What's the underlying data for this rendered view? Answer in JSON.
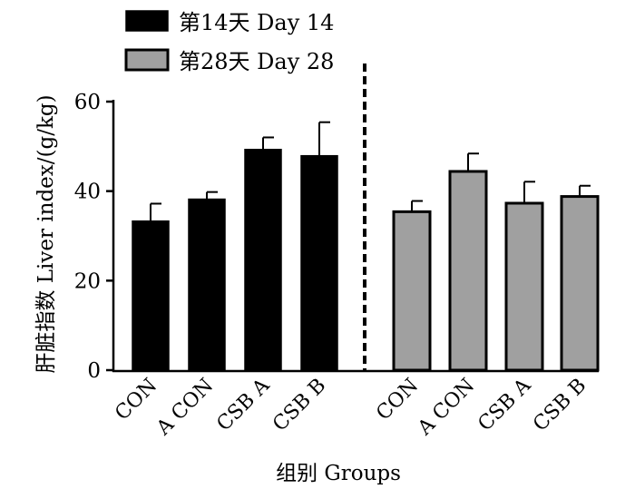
{
  "chart_data": {
    "type": "bar",
    "ylabel": "肝脏指数 Liver index/(g/kg)",
    "xlabel": "组别 Groups",
    "ylim": [
      0,
      60
    ],
    "yticks": [
      0,
      20,
      40,
      60
    ],
    "legend_position": "top-left",
    "grid": false,
    "separator": "dashed vertical line between groups",
    "categories": [
      "CON",
      "A CON",
      "CSB A",
      "CSB B"
    ],
    "series": [
      {
        "name": "第14天 Day 14",
        "color": "#000000",
        "values": [
          33.3,
          38.2,
          49.3,
          47.9
        ],
        "errors": [
          3.9,
          1.6,
          2.7,
          7.5
        ]
      },
      {
        "name": "第28天 Day 28",
        "color": "#a0a0a0",
        "values": [
          35.4,
          44.4,
          37.3,
          38.8
        ],
        "errors": [
          2.4,
          4.0,
          4.8,
          2.4
        ]
      }
    ]
  }
}
